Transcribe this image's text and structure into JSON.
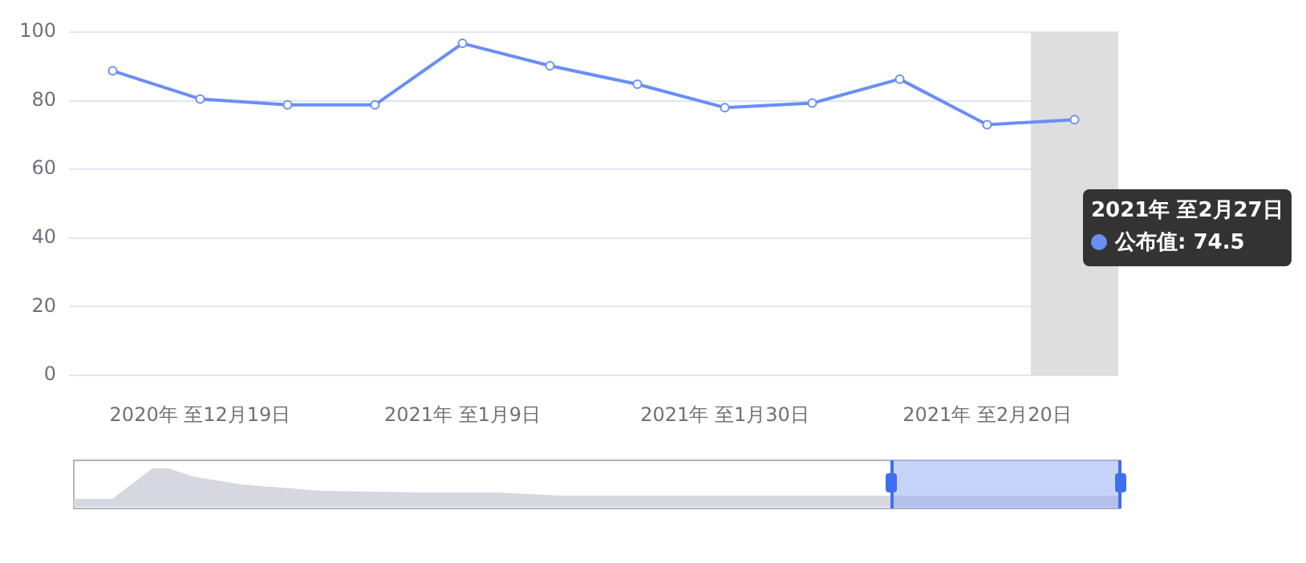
{
  "chart_data": {
    "type": "line",
    "x": [
      "2020-12-12",
      "2020-12-19",
      "2020-12-26",
      "2021-01-02",
      "2021-01-09",
      "2021-01-16",
      "2021-01-23",
      "2021-01-30",
      "2021-02-06",
      "2021-02-13",
      "2021-02-20",
      "2021-02-27"
    ],
    "series": [
      {
        "color": "#6a8ef5",
        "values": [
          88.7,
          80.5,
          78.8,
          78.8,
          96.7,
          90.2,
          84.8,
          78,
          79.3,
          86.3,
          73,
          74.5
        ]
      }
    ],
    "xlim": [
      "2020-12-08T12:00",
      "2021-03-02T12:00"
    ],
    "xticks": [
      {
        "value": "2020-12-19",
        "label": "2020年 至12月19日"
      },
      {
        "value": "2021-01-09",
        "label": "2021年 至1月9日"
      },
      {
        "value": "2021-01-30",
        "label": "2021年 至1月30日"
      },
      {
        "value": "2021-02-20",
        "label": "2021年 至2月20日"
      }
    ],
    "ylim": [
      0,
      100
    ],
    "yticks": [
      0,
      20,
      40,
      60,
      80,
      100
    ],
    "grid": "y",
    "marker": "circle",
    "line_style": "solid",
    "bands": [
      {
        "axis": "x",
        "from": "2021-02-23T12:00",
        "to": "2021-03-02T12:00",
        "color": "#dedede"
      }
    ],
    "annotations": [
      "2021年 至2月27日",
      "公布值: 74.5"
    ]
  }
}
